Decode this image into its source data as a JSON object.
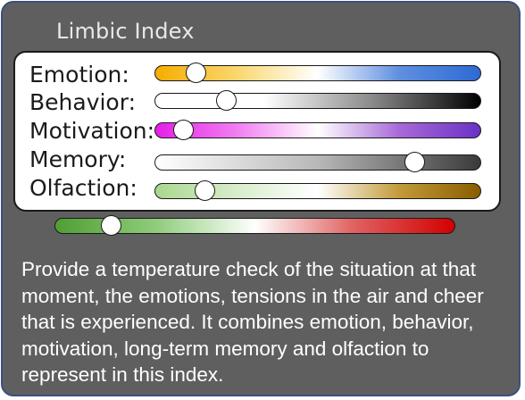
{
  "title": "Limbic Index",
  "rows": [
    {
      "label": "Emotion:",
      "level": 0.1,
      "gradient": [
        "#f5ad00",
        "#f9d76e",
        "#ffffff",
        "#5f8fe0",
        "#2e6ad4"
      ]
    },
    {
      "label": "Behavior:",
      "level": 0.2,
      "gradient": [
        "#ffffff",
        "#ffffff",
        "#8a8a8a",
        "#000000"
      ]
    },
    {
      "label": "Motivation:",
      "level": 0.06,
      "gradient": [
        "#e51fe6",
        "#f17ef2",
        "#ffffff",
        "#a869d8",
        "#6a32c4"
      ]
    },
    {
      "label": "Memory:",
      "level": 0.82,
      "gradient": [
        "#ffffff",
        "#b8b8b8",
        "#3a3a3a"
      ]
    },
    {
      "label": "Olfaction:",
      "level": 0.13,
      "gradient": [
        "#a9d88f",
        "#d8edcb",
        "#ffffff",
        "#c29a3a",
        "#8a5d00"
      ]
    }
  ],
  "overall": {
    "level": 0.12,
    "gradient": [
      "#4f9e33",
      "#8fcc7a",
      "#ffffff",
      "#e06060",
      "#d30000"
    ]
  },
  "description": "Provide a temperature check of the situation at that moment, the emotions, tensions in the air and cheer that is experienced. It combines emotion, behavior, motivation, long-term memory and olfaction to represent in this index."
}
